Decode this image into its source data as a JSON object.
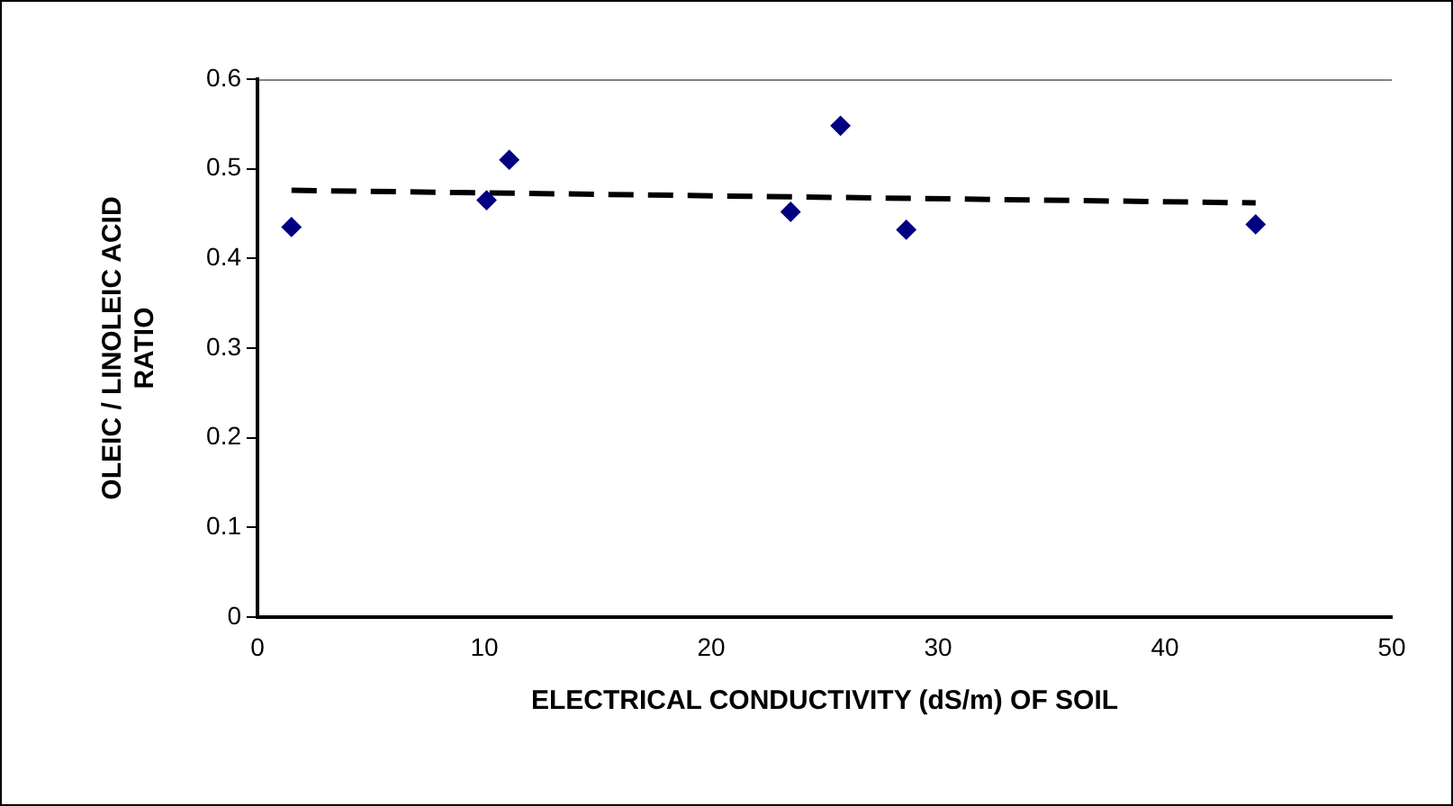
{
  "chart_data": {
    "type": "scatter",
    "xlabel": "ELECTRICAL CONDUCTIVITY (dS/m) OF SOIL",
    "ylabel": "OLEIC / LINOLEIC ACID RATIO",
    "xlim": [
      0,
      50
    ],
    "xticks": [
      0,
      10,
      20,
      30,
      40,
      50
    ],
    "ylim": [
      0,
      0.6
    ],
    "yticks": [
      0,
      0.1,
      0.2,
      0.3,
      0.4,
      0.5,
      0.6
    ],
    "grid": false,
    "legend": false,
    "series": [
      {
        "color": "#000080",
        "marker": "diamond",
        "x": [
          1.5,
          10.1,
          11.1,
          23.5,
          25.7,
          28.6,
          44
        ],
        "values": [
          0.435,
          0.465,
          0.51,
          0.452,
          0.548,
          0.432,
          0.438
        ]
      },
      {
        "type": "line",
        "color": "#000000",
        "marker": "none",
        "line_style": "dashed",
        "x": [
          1.5,
          44
        ],
        "values": [
          0.476,
          0.462
        ]
      }
    ]
  }
}
